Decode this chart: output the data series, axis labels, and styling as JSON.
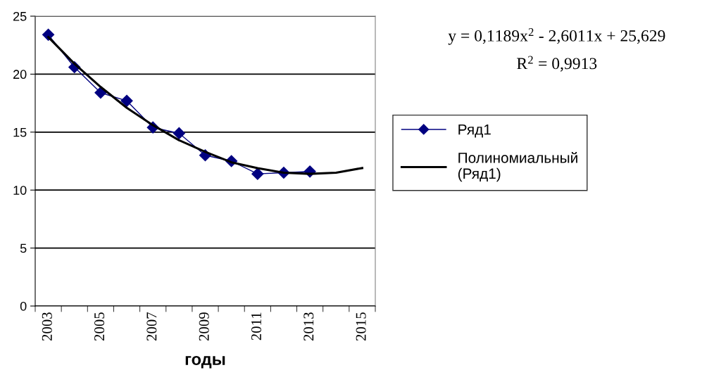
{
  "chart_data": {
    "type": "line",
    "xlabel": "годы",
    "categories": [
      "2003",
      null,
      "2005",
      null,
      "2007",
      null,
      "2009",
      null,
      "2011",
      null,
      "2013",
      null,
      "2015"
    ],
    "series": [
      {
        "name": "Ряд1",
        "color": "#000080",
        "marker": "diamond",
        "values": [
          23.4,
          20.6,
          18.4,
          17.7,
          15.4,
          14.9,
          13.0,
          12.5,
          11.4,
          11.5,
          11.6,
          null,
          null
        ]
      },
      {
        "name": "Полиномиальный\n(Ряд1)",
        "color": "#000000",
        "marker": "none",
        "values": [
          23.2,
          20.9,
          18.9,
          17.1,
          15.6,
          14.3,
          13.3,
          12.4,
          11.9,
          11.5,
          11.4,
          11.5,
          11.9
        ]
      }
    ],
    "ylim": [
      0,
      25
    ],
    "yticks": [
      0,
      5,
      10,
      15,
      20,
      25
    ],
    "grid": "y",
    "legend": "right",
    "annotations": [
      "y = 0,1189x$^{2}$ - 2,6011x + 25,629",
      "R$^{2}$ = 0,9913"
    ]
  }
}
